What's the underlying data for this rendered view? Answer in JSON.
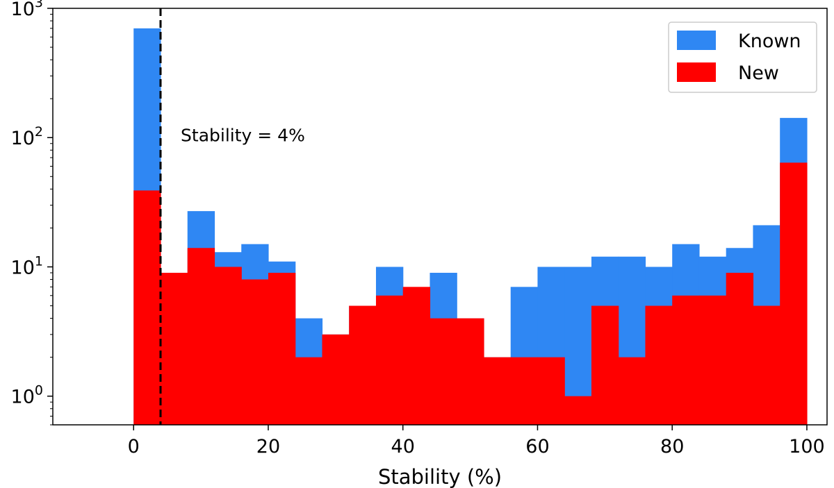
{
  "chart_data": {
    "type": "bar",
    "stacked": true,
    "y_scale": "log",
    "xlabel": "Stability (%)",
    "ylabel": "",
    "xlim": [
      -12,
      103
    ],
    "ylim": [
      0.6,
      1000
    ],
    "x_ticks": [
      0,
      20,
      40,
      60,
      80,
      100
    ],
    "y_ticks": [
      {
        "value": 1,
        "base": "10",
        "exp": "0"
      },
      {
        "value": 10,
        "base": "10",
        "exp": "1"
      },
      {
        "value": 100,
        "base": "10",
        "exp": "2"
      },
      {
        "value": 1000,
        "base": "10",
        "exp": "3"
      }
    ],
    "bin_edges": [
      0,
      4,
      8,
      12,
      16,
      20,
      24,
      28,
      32,
      36,
      40,
      44,
      48,
      52,
      56,
      60,
      64,
      68,
      72,
      76,
      80,
      84,
      88,
      92,
      96,
      100
    ],
    "series": [
      {
        "name": "Known",
        "color": "#2f87f3",
        "values": [
          700,
          9,
          27,
          13,
          15,
          11,
          4,
          3,
          5,
          10,
          6,
          9,
          4,
          2,
          7,
          10,
          10,
          12,
          12,
          10,
          15,
          12,
          14,
          21,
          142
        ]
      },
      {
        "name": "New",
        "color": "#ff0000",
        "values": [
          39,
          9,
          14,
          10,
          8,
          9,
          2,
          3,
          5,
          6,
          7,
          4,
          4,
          2,
          2,
          2,
          1,
          5,
          2,
          5,
          6,
          6,
          9,
          5,
          64
        ]
      }
    ],
    "legend": {
      "position": "top-right"
    },
    "grid": false,
    "annotations": [
      {
        "type": "vline",
        "x": 4,
        "style": "dashed",
        "color": "#000000"
      },
      {
        "type": "text",
        "text": "Stability = 4%",
        "x": 7,
        "y": 105
      }
    ]
  }
}
